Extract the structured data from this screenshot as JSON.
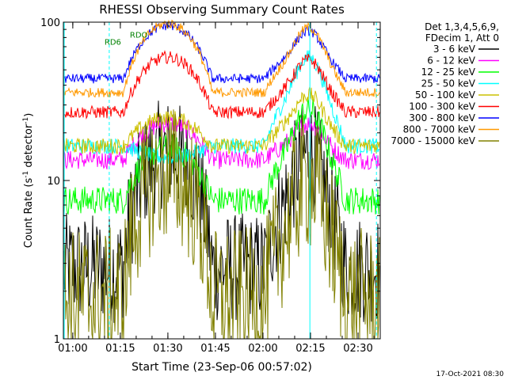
{
  "chart_data": {
    "type": "line",
    "title": "RHESSI Observing Summary Count Rates",
    "xlabel": "Start Time (23-Sep-06 00:57:02)",
    "ylabel_main": "Count Rate (s",
    "ylabel_sup1": "-1",
    "ylabel_mid": " detector",
    "ylabel_sup2": "-1",
    "ylabel_end": ")",
    "yscale": "log",
    "ylim": [
      1,
      100
    ],
    "x_range_minutes": [
      57.03,
      157.0
    ],
    "x_ticks": [
      {
        "label": "01:00",
        "minute": 60
      },
      {
        "label": "01:15",
        "minute": 75
      },
      {
        "label": "01:30",
        "minute": 90
      },
      {
        "label": "01:45",
        "minute": 105
      },
      {
        "label": "02:00",
        "minute": 120
      },
      {
        "label": "02:15",
        "minute": 135
      },
      {
        "label": "02:30",
        "minute": 150
      }
    ],
    "y_ticks": [
      {
        "label": "1",
        "value": 1
      },
      {
        "label": "10",
        "value": 10
      },
      {
        "label": "100",
        "value": 100
      }
    ],
    "legend": {
      "header1": "Det 1,3,4,5,6,9,",
      "header2": "FDecim 1, Att 0",
      "placement": "right"
    },
    "series": [
      {
        "name": "3 - 6 keV",
        "color": "#000000",
        "base": 2.8,
        "peak": 15,
        "peak2": 15,
        "noise": 0.35
      },
      {
        "name": "6 - 12 keV",
        "color": "#ff00ff",
        "base": 13.5,
        "peak": 23,
        "peak2": 23,
        "noise": 0.06
      },
      {
        "name": "12 - 25 keV",
        "color": "#00ff00",
        "base": 7.5,
        "peak": 16,
        "peak2": 28,
        "noise": 0.09
      },
      {
        "name": "25 - 50 keV",
        "color": "#00ffff",
        "base": 16.5,
        "peak": 14,
        "peak2": 60,
        "noise": 0.05
      },
      {
        "name": "50 - 100 keV",
        "color": "#ccc000",
        "base": 16.5,
        "peak": 25,
        "peak2": 35,
        "noise": 0.05
      },
      {
        "name": "100 - 300 keV",
        "color": "#ff0000",
        "base": 27,
        "peak": 60,
        "peak2": 58,
        "noise": 0.04
      },
      {
        "name": "300 - 800 keV",
        "color": "#0000ff",
        "base": 44,
        "peak": 95,
        "peak2": 88,
        "noise": 0.03
      },
      {
        "name": "800 - 7000 keV",
        "color": "#ff9900",
        "base": 36,
        "peak": 98,
        "peak2": 93,
        "noise": 0.03
      },
      {
        "name": "7000 - 15000 keV",
        "color": "#808000",
        "base": 1.8,
        "peak": 11,
        "peak2": 10,
        "noise": 0.45
      }
    ],
    "flare_peak_minute": 134.5,
    "saa_intervals": [
      [
        76.0,
        104.0
      ],
      [
        120.5,
        146.0
      ]
    ],
    "annotations": [
      {
        "label": "RDO",
        "minute": 78,
        "value": 80
      },
      {
        "label": "RD6",
        "minute": 70,
        "value": 72
      }
    ],
    "vertical_lines": [
      {
        "minute": 57.3,
        "style": "solid",
        "color": "#00ffff"
      },
      {
        "minute": 71.5,
        "style": "dash",
        "color": "#00ffff"
      },
      {
        "minute": 134.8,
        "style": "solid",
        "color": "#00ffff"
      },
      {
        "minute": 155.8,
        "style": "dash",
        "color": "#00ffff"
      }
    ]
  },
  "footer": {
    "timestamp": "17-Oct-2021 08:30"
  }
}
